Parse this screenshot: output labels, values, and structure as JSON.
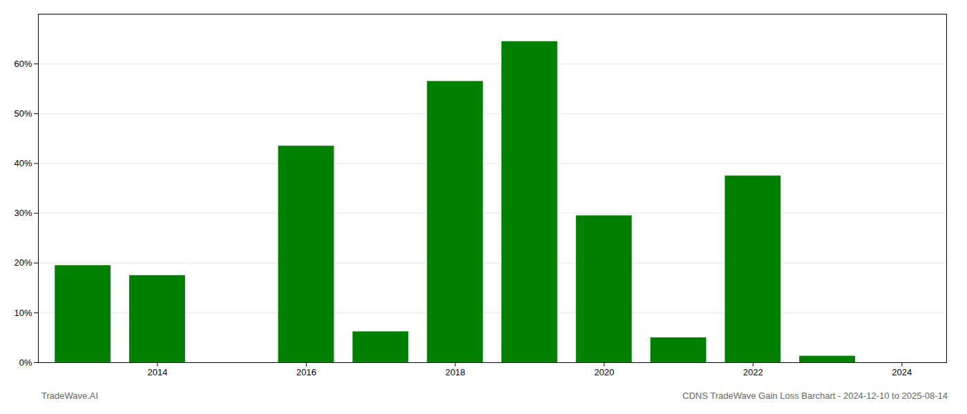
{
  "chart_data": {
    "type": "bar",
    "title": "CDNS TradeWave Gain Loss Barchart - 2024-12-10 to 2025-08-14",
    "annotations": [
      "TradeWave.AI"
    ],
    "x": [
      2013,
      2014,
      2015,
      2016,
      2017,
      2018,
      2019,
      2020,
      2021,
      2022,
      2023,
      2024
    ],
    "values": [
      0.195,
      0.175,
      0.0,
      0.435,
      0.062,
      0.565,
      0.645,
      0.295,
      0.05,
      0.375,
      0.013,
      0.0
    ],
    "color": "#008000",
    "xlim": [
      2012.4,
      2024.6
    ],
    "xticks": [
      2014,
      2016,
      2018,
      2020,
      2022,
      2024
    ],
    "ylim": [
      0,
      0.7
    ],
    "yticks": [
      {
        "value": 0,
        "label": "0%"
      },
      {
        "value": 0.1,
        "label": "10%"
      },
      {
        "value": 0.2,
        "label": "20%"
      },
      {
        "value": 0.3,
        "label": "30%"
      },
      {
        "value": 0.4,
        "label": "40%"
      },
      {
        "value": 0.5,
        "label": "50%"
      },
      {
        "value": 0.6,
        "label": "60%"
      }
    ],
    "grid": true
  }
}
